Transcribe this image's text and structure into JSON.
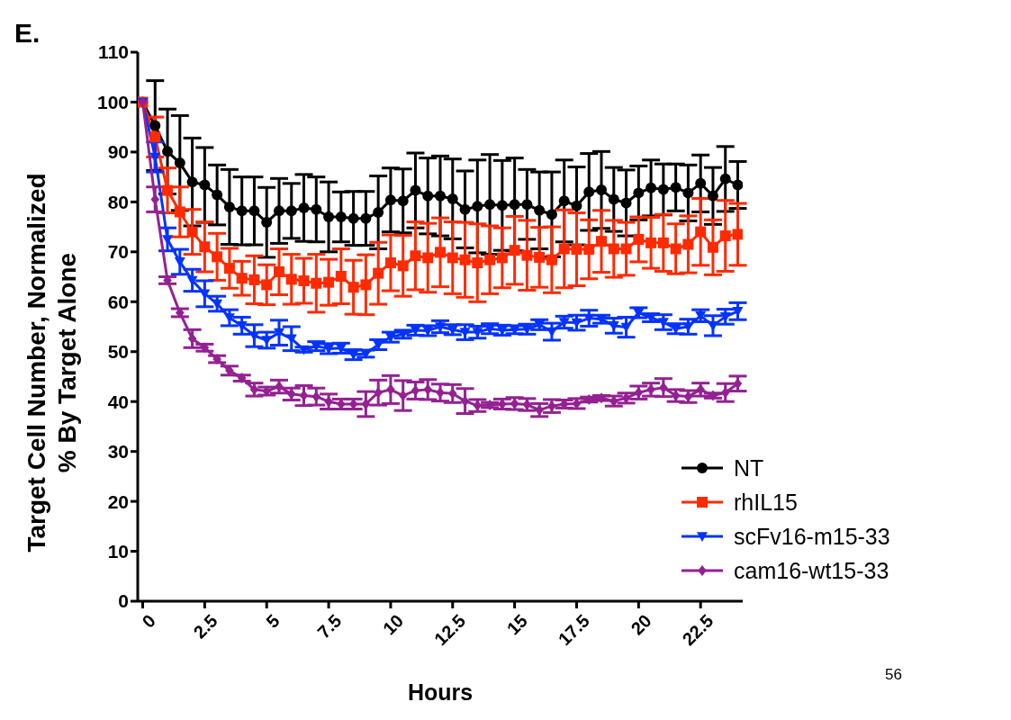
{
  "chart_data": {
    "type": "line",
    "xlabel": "Hours",
    "ylabel": "Target Cell Number, Normalized\n% By Target Alone",
    "annotations": [
      "E.",
      "56"
    ],
    "x": [
      0,
      0.5,
      1,
      1.5,
      2,
      2.5,
      3,
      3.5,
      4,
      4.5,
      5,
      5.5,
      6,
      6.5,
      7,
      7.5,
      8,
      8.5,
      9,
      9.5,
      10,
      10.5,
      11,
      11.5,
      12,
      12.5,
      13,
      13.5,
      14,
      14.5,
      15,
      15.5,
      16,
      16.5,
      17,
      17.5,
      18,
      18.5,
      19,
      19.5,
      20,
      20.5,
      21,
      21.5,
      22,
      22.5,
      23,
      23.5,
      24
    ],
    "xlim": [
      -0.2,
      24.2
    ],
    "xticks": [
      0,
      2.5,
      5,
      7.5,
      10,
      12.5,
      15,
      17.5,
      20,
      22.5
    ],
    "ylim": [
      0,
      110
    ],
    "yticks": [
      0,
      10,
      20,
      30,
      40,
      50,
      60,
      70,
      80,
      90,
      100,
      110
    ],
    "legend": "bottom right",
    "line_style": "solid",
    "series": [
      {
        "name": "NT",
        "color": "#000000",
        "marker": "circle",
        "values": [
          100,
          95.3,
          90.1,
          87.8,
          84,
          83.4,
          81.4,
          79,
          78.2,
          78.2,
          75.9,
          78.2,
          78.2,
          78.8,
          78.5,
          77,
          77,
          76.7,
          76.7,
          77.9,
          80.4,
          80.2,
          82.3,
          81.2,
          81.2,
          80.6,
          78.5,
          79.1,
          79.5,
          79.3,
          79.5,
          79.5,
          78.3,
          77.5,
          80.2,
          79.2,
          82,
          82.4,
          80.5,
          79.8,
          81.8,
          82.8,
          82.5,
          82.9,
          81.8,
          83.7,
          81.2,
          84.6,
          83.4
        ],
        "errors": [
          0,
          9,
          8.5,
          9.5,
          8.8,
          7.5,
          6,
          7.5,
          6.8,
          6.8,
          7,
          6.5,
          5.5,
          6.7,
          6.5,
          7,
          5,
          5.4,
          5.4,
          7.3,
          6.4,
          6.4,
          7.5,
          7.6,
          8,
          8,
          7.7,
          9.3,
          10,
          9,
          9.3,
          7,
          7.7,
          8.5,
          8.2,
          7.8,
          7.7,
          7.7,
          6.4,
          6.6,
          5.4,
          5.6,
          5.1,
          4.7,
          5.6,
          5.7,
          5.7,
          6.5,
          4.7
        ]
      },
      {
        "name": "rhIL15",
        "color": "#ff2a00",
        "marker": "square",
        "values": [
          100,
          93,
          82.3,
          78,
          74,
          71,
          69,
          66.7,
          64.7,
          64.4,
          63.4,
          66,
          64.5,
          64.2,
          63.7,
          63.9,
          65.1,
          62.9,
          63.4,
          65.7,
          67.8,
          67.2,
          69.2,
          68.8,
          69.9,
          68.8,
          68.4,
          67.8,
          68.4,
          68.8,
          70.3,
          69.3,
          68.9,
          68.4,
          70.6,
          70.5,
          70.5,
          72.1,
          70.6,
          70.6,
          72.5,
          71.8,
          71.8,
          70.6,
          71.5,
          74,
          70.9,
          73.2,
          73.5
        ],
        "errors": [
          0,
          4,
          4.5,
          5,
          4.5,
          5,
          4.7,
          4,
          3.4,
          4.8,
          4,
          4.6,
          5,
          4.5,
          5.8,
          4.6,
          5.5,
          5.4,
          6,
          6.2,
          5.6,
          6.1,
          6.8,
          6.9,
          6.9,
          7.2,
          7.5,
          7.8,
          6.8,
          6,
          6.8,
          7,
          6,
          6.6,
          7.8,
          7.3,
          5.9,
          6.2,
          5.7,
          5.3,
          4.5,
          5.1,
          5.7,
          5,
          5.7,
          6.7,
          5.5,
          7.1,
          6.2
        ]
      },
      {
        "name": "scFv16-m15-33",
        "color": "#0433ff",
        "marker": "triangle",
        "values": [
          100,
          89,
          72.5,
          68,
          64.3,
          61.6,
          59.6,
          56.8,
          55.2,
          53.2,
          52.3,
          53.8,
          52.6,
          50.4,
          51.1,
          50.6,
          50.7,
          49.4,
          49.6,
          51.4,
          52.9,
          53.5,
          54.3,
          54.2,
          55,
          54.4,
          53.9,
          53.9,
          54.6,
          54.3,
          54.4,
          54.5,
          55.4,
          54,
          55.9,
          55.8,
          56.7,
          56.5,
          55.2,
          54.9,
          57.8,
          56.8,
          55.9,
          54.6,
          55,
          57.2,
          55.2,
          57,
          58.1
        ],
        "errors": [
          0,
          3,
          2.3,
          2.5,
          2.2,
          2.6,
          1.5,
          1.6,
          1.7,
          2.2,
          1.6,
          2.5,
          2.4,
          0.5,
          0.9,
          1,
          1,
          1,
          0.7,
          1,
          1,
          0.8,
          1,
          1,
          1.2,
          1,
          1.5,
          1.2,
          1,
          1,
          0.8,
          1,
          1,
          1.7,
          1.2,
          1.5,
          1.6,
          0.8,
          1.5,
          2,
          1,
          0.8,
          1.5,
          1,
          1.5,
          1.2,
          2,
          1.5,
          1.7
        ]
      },
      {
        "name": "cam16-wt15-33",
        "color": "#942192",
        "marker": "diamond",
        "values": [
          100,
          80.5,
          64.3,
          57.8,
          52.6,
          50.8,
          48.5,
          46.2,
          44.7,
          42.4,
          42.1,
          43,
          41.5,
          41.2,
          41,
          40,
          39.5,
          39.5,
          39.5,
          41.8,
          42.4,
          41.2,
          42.2,
          42.4,
          41.8,
          41.6,
          40.1,
          39.2,
          39.3,
          39.5,
          39.6,
          39.4,
          38.3,
          39.1,
          39.5,
          39.6,
          40.4,
          40.7,
          40.1,
          40.7,
          41.8,
          42.4,
          42.8,
          41.2,
          41,
          42.4,
          41.2,
          41.8,
          43.6
        ],
        "errors": [
          0,
          2.5,
          0.7,
          0.8,
          1.8,
          0.7,
          0.7,
          0.9,
          0.6,
          1.3,
          0.8,
          1.3,
          1.2,
          2,
          1.7,
          1.5,
          1,
          1,
          2.5,
          2.5,
          2.8,
          3,
          1.7,
          2,
          1.7,
          1.8,
          2.5,
          1.2,
          0.5,
          1,
          1.2,
          1.2,
          1.3,
          1.3,
          0.8,
          1,
          0.5,
          0.5,
          1,
          1,
          1.3,
          1.3,
          1.8,
          1.2,
          1.2,
          1.3,
          0.5,
          1.8,
          1.5
        ]
      }
    ]
  }
}
